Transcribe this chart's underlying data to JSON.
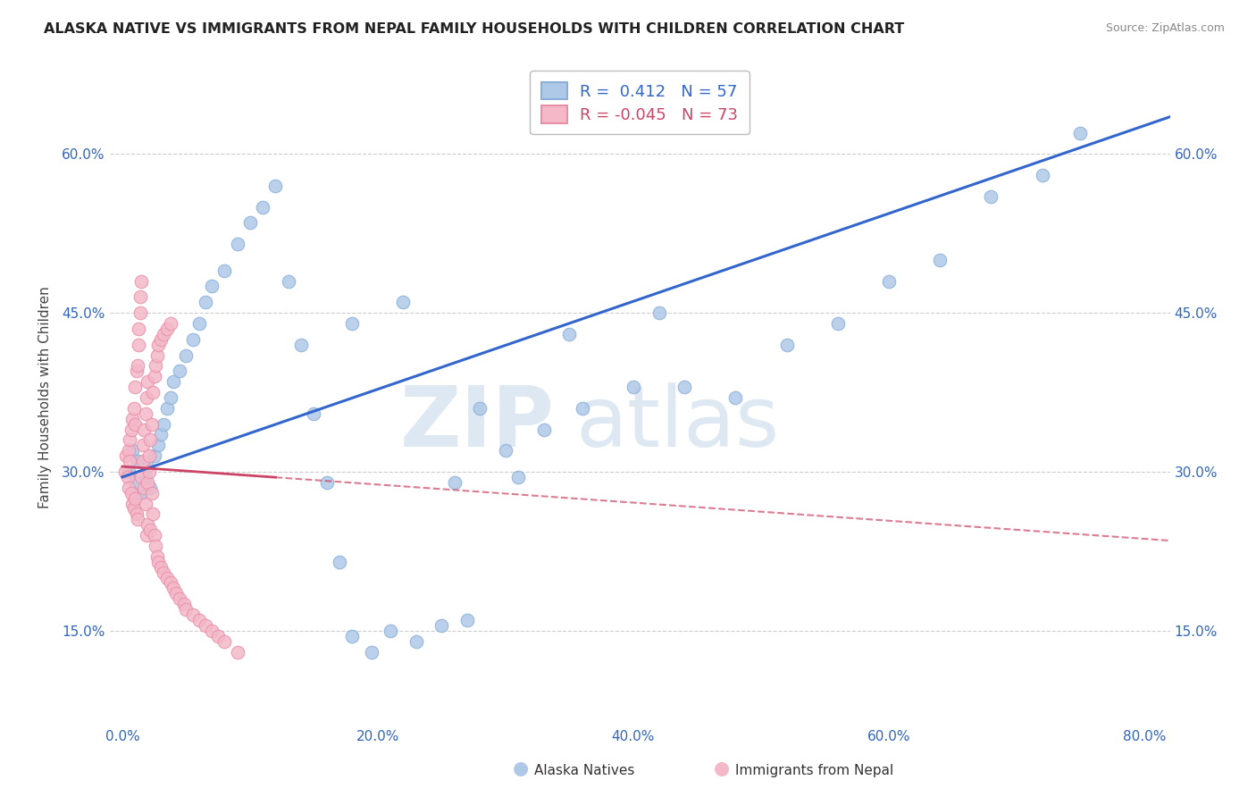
{
  "title": "ALASKA NATIVE VS IMMIGRANTS FROM NEPAL FAMILY HOUSEHOLDS WITH CHILDREN CORRELATION CHART",
  "source": "Source: ZipAtlas.com",
  "xlabel_ticks": [
    "0.0%",
    "20.0%",
    "40.0%",
    "60.0%",
    "80.0%"
  ],
  "xlabel_vals": [
    0.0,
    0.2,
    0.4,
    0.6,
    0.8
  ],
  "ylabel_ticks": [
    "15.0%",
    "30.0%",
    "45.0%",
    "60.0%"
  ],
  "ylabel_vals": [
    0.15,
    0.3,
    0.45,
    0.6
  ],
  "xlim": [
    -0.01,
    0.82
  ],
  "ylim": [
    0.06,
    0.68
  ],
  "blue_R": 0.412,
  "blue_N": 57,
  "pink_R": -0.045,
  "pink_N": 73,
  "blue_color": "#aec8e8",
  "pink_color": "#f4b8c8",
  "blue_edge": "#8ab0d8",
  "pink_edge": "#e890a8",
  "blue_line_color": "#3366cc",
  "pink_line_color": "#cc4466",
  "ylabel": "Family Households with Children",
  "legend_label_blue": "Alaska Natives",
  "legend_label_pink": "Immigrants from Nepal",
  "blue_scatter_x": [
    0.005,
    0.008,
    0.01,
    0.012,
    0.015,
    0.018,
    0.02,
    0.022,
    0.025,
    0.028,
    0.03,
    0.032,
    0.035,
    0.038,
    0.04,
    0.045,
    0.05,
    0.055,
    0.06,
    0.065,
    0.07,
    0.08,
    0.09,
    0.1,
    0.11,
    0.12,
    0.13,
    0.14,
    0.15,
    0.16,
    0.17,
    0.18,
    0.195,
    0.21,
    0.23,
    0.25,
    0.27,
    0.3,
    0.33,
    0.36,
    0.4,
    0.44,
    0.48,
    0.52,
    0.56,
    0.6,
    0.64,
    0.68,
    0.72,
    0.75,
    0.18,
    0.22,
    0.26,
    0.31,
    0.35,
    0.28,
    0.42
  ],
  "blue_scatter_y": [
    0.3,
    0.32,
    0.29,
    0.31,
    0.28,
    0.295,
    0.305,
    0.285,
    0.315,
    0.325,
    0.335,
    0.345,
    0.36,
    0.37,
    0.385,
    0.395,
    0.41,
    0.425,
    0.44,
    0.46,
    0.475,
    0.49,
    0.515,
    0.535,
    0.55,
    0.57,
    0.48,
    0.42,
    0.355,
    0.29,
    0.215,
    0.145,
    0.13,
    0.15,
    0.14,
    0.155,
    0.16,
    0.32,
    0.34,
    0.36,
    0.38,
    0.38,
    0.37,
    0.42,
    0.44,
    0.48,
    0.5,
    0.56,
    0.58,
    0.62,
    0.44,
    0.46,
    0.29,
    0.295,
    0.43,
    0.36,
    0.45
  ],
  "pink_scatter_x": [
    0.002,
    0.003,
    0.004,
    0.005,
    0.005,
    0.006,
    0.006,
    0.007,
    0.007,
    0.008,
    0.008,
    0.009,
    0.009,
    0.01,
    0.01,
    0.01,
    0.011,
    0.011,
    0.012,
    0.012,
    0.013,
    0.013,
    0.014,
    0.014,
    0.015,
    0.015,
    0.016,
    0.016,
    0.017,
    0.017,
    0.018,
    0.018,
    0.019,
    0.019,
    0.02,
    0.02,
    0.02,
    0.021,
    0.021,
    0.022,
    0.022,
    0.023,
    0.023,
    0.024,
    0.024,
    0.025,
    0.025,
    0.026,
    0.026,
    0.027,
    0.027,
    0.028,
    0.028,
    0.03,
    0.03,
    0.032,
    0.032,
    0.035,
    0.035,
    0.038,
    0.038,
    0.04,
    0.042,
    0.045,
    0.048,
    0.05,
    0.055,
    0.06,
    0.065,
    0.07,
    0.075,
    0.08,
    0.09
  ],
  "pink_scatter_y": [
    0.3,
    0.315,
    0.295,
    0.32,
    0.285,
    0.31,
    0.33,
    0.28,
    0.34,
    0.27,
    0.35,
    0.265,
    0.36,
    0.275,
    0.345,
    0.38,
    0.26,
    0.395,
    0.255,
    0.4,
    0.42,
    0.435,
    0.45,
    0.465,
    0.48,
    0.295,
    0.31,
    0.325,
    0.34,
    0.285,
    0.27,
    0.355,
    0.24,
    0.37,
    0.25,
    0.385,
    0.29,
    0.3,
    0.315,
    0.245,
    0.33,
    0.28,
    0.345,
    0.26,
    0.375,
    0.24,
    0.39,
    0.23,
    0.4,
    0.22,
    0.41,
    0.215,
    0.42,
    0.21,
    0.425,
    0.205,
    0.43,
    0.2,
    0.435,
    0.195,
    0.44,
    0.19,
    0.185,
    0.18,
    0.175,
    0.17,
    0.165,
    0.16,
    0.155,
    0.15,
    0.145,
    0.14,
    0.13
  ]
}
